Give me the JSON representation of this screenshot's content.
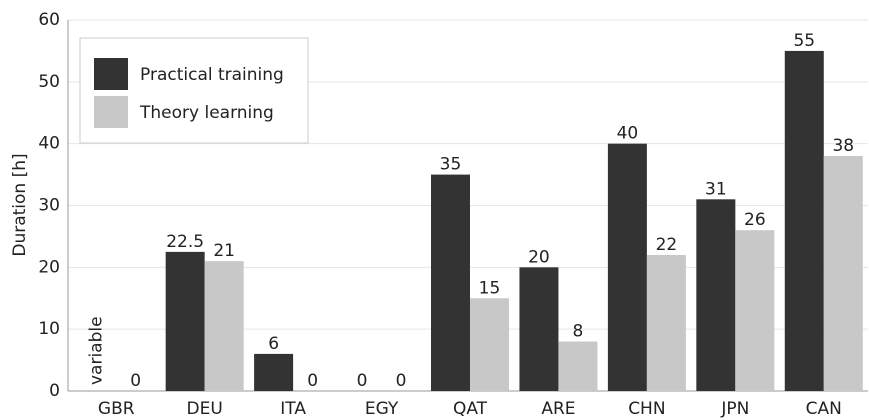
{
  "chart_data": {
    "type": "bar",
    "y_label": "Duration [h]",
    "categories": [
      "GBR",
      "DEU",
      "ITA",
      "EGY",
      "QAT",
      "ARE",
      "CHN",
      "JPN",
      "CAN"
    ],
    "series": [
      {
        "name": "Practical training",
        "color": "#333333",
        "values": [
          null,
          22.5,
          6,
          0,
          35,
          20,
          40,
          31,
          55
        ],
        "value_labels": [
          "variable",
          "22.5",
          "6",
          "0",
          "35",
          "20",
          "40",
          "31",
          "55"
        ]
      },
      {
        "name": "Theory learning",
        "color": "#c8c8c8",
        "values": [
          0,
          21,
          0,
          0,
          15,
          8,
          22,
          26,
          38
        ]
      }
    ],
    "ylim": [
      0,
      60
    ],
    "yticks": [
      0,
      10,
      20,
      30,
      40,
      50,
      60
    ],
    "grid": true,
    "legend": "upper left"
  }
}
